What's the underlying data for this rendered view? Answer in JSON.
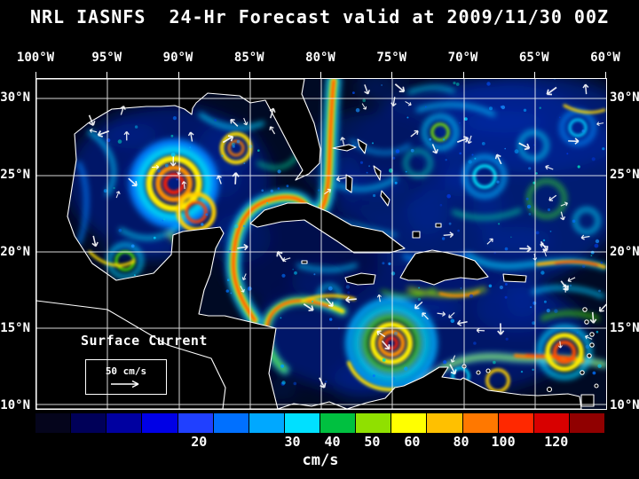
{
  "title": "NRL IASNFS  24-Hr Forecast valid at 2009/11/30 00Z",
  "map": {
    "overlay_label": "Surface Current",
    "scale_label": "50 cm/s",
    "lon_ticks": [
      "100°W",
      "95°W",
      "90°W",
      "85°W",
      "80°W",
      "75°W",
      "70°W",
      "65°W",
      "60°W"
    ],
    "lat_ticks": [
      "30°N",
      "25°N",
      "20°N",
      "15°N",
      "10°N"
    ],
    "lat_tick_positions_pct": [
      6.0,
      29.2,
      52.3,
      75.5,
      98.6
    ]
  },
  "colorbar": {
    "title": "cm/s",
    "labels": [
      {
        "text": "20",
        "pos_pct": 28.7
      },
      {
        "text": "30",
        "pos_pct": 45.1
      },
      {
        "text": "40",
        "pos_pct": 52.1
      },
      {
        "text": "50",
        "pos_pct": 59.1
      },
      {
        "text": "60",
        "pos_pct": 66.1
      },
      {
        "text": "80",
        "pos_pct": 74.7
      },
      {
        "text": "100",
        "pos_pct": 82.1
      },
      {
        "text": "120",
        "pos_pct": 91.4
      }
    ],
    "colors": [
      "#05051c",
      "#000058",
      "#0000a0",
      "#0000e6",
      "#2040ff",
      "#0070ff",
      "#00a8ff",
      "#00e0ff",
      "#00c040",
      "#90e000",
      "#ffff00",
      "#ffc000",
      "#ff7800",
      "#ff2800",
      "#d80000",
      "#900000"
    ]
  }
}
